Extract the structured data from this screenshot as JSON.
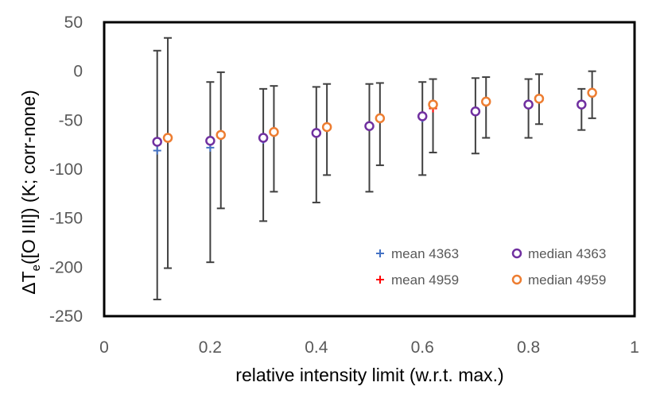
{
  "chart_data": {
    "type": "scatter",
    "title": "",
    "xlabel": "relative intensity limit   (w.r.t. max.)",
    "ylabel_main": "ΔT",
    "ylabel_sub": "e",
    "ylabel_rest": "([O III])   (K; corr-none)",
    "xlim": [
      0,
      1
    ],
    "ylim": [
      -250,
      50
    ],
    "x_ticks": [
      "0",
      "0.2",
      "0.4",
      "0.6",
      "0.8",
      "1"
    ],
    "y_ticks": [
      "50",
      "0",
      "-50",
      "-100",
      "-150",
      "-200",
      "-250"
    ],
    "grid": false,
    "legend_position": "bottom-right",
    "series": [
      {
        "name": "mean 4363",
        "marker": "plus",
        "color": "#4472c4",
        "x": [
          0.1,
          0.2,
          0.3,
          0.4,
          0.5,
          0.6,
          0.7,
          0.8,
          0.9
        ],
        "values": [
          -81,
          -78,
          -70,
          -62,
          -56,
          -48,
          -41,
          -33,
          -33
        ],
        "error_low": [
          -233,
          -195,
          -153,
          -134,
          -123,
          -106,
          -84,
          -68,
          -60
        ],
        "error_high": [
          21,
          -11,
          -18,
          -16,
          -13,
          -11,
          -7,
          -8,
          -18
        ]
      },
      {
        "name": "median 4363",
        "marker": "circle",
        "color": "#7030a0",
        "x": [
          0.1,
          0.2,
          0.3,
          0.4,
          0.5,
          0.6,
          0.7,
          0.8,
          0.9
        ],
        "values": [
          -72,
          -71,
          -68,
          -63,
          -56,
          -46,
          -41,
          -34,
          -34
        ]
      },
      {
        "name": "mean 4959",
        "marker": "plus",
        "color": "#ff0000",
        "x": [
          0.12,
          0.22,
          0.32,
          0.42,
          0.52,
          0.62,
          0.72,
          0.82,
          0.92
        ],
        "values": [
          -68,
          -65,
          -61,
          -57,
          -49,
          -38,
          -31,
          -28,
          -21
        ],
        "error_low": [
          -201,
          -140,
          -123,
          -106,
          -96,
          -83,
          -68,
          -54,
          -48
        ],
        "error_high": [
          34,
          -1,
          -15,
          -13,
          -12,
          -8,
          -6,
          -3,
          0
        ]
      },
      {
        "name": "median 4959",
        "marker": "circle",
        "color": "#ed7d31",
        "x": [
          0.12,
          0.22,
          0.32,
          0.42,
          0.52,
          0.62,
          0.72,
          0.82,
          0.92
        ],
        "values": [
          -68,
          -65,
          -62,
          -57,
          -48,
          -34,
          -31,
          -28,
          -22
        ]
      }
    ],
    "legend": [
      {
        "label": "mean 4363",
        "marker": "plus",
        "color": "#4472c4"
      },
      {
        "label": "median 4363",
        "marker": "circle",
        "color": "#7030a0"
      },
      {
        "label": "mean 4959",
        "marker": "plus",
        "color": "#ff0000"
      },
      {
        "label": "median 4959",
        "marker": "circle",
        "color": "#ed7d31"
      }
    ]
  }
}
